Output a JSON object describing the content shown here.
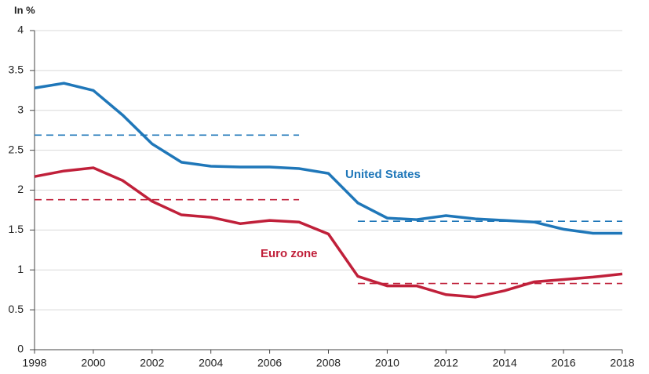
{
  "chart_data": {
    "type": "line",
    "y_label": "In %",
    "x": [
      1998,
      1999,
      2000,
      2001,
      2002,
      2003,
      2004,
      2005,
      2006,
      2007,
      2008,
      2009,
      2010,
      2011,
      2012,
      2013,
      2014,
      2015,
      2016,
      2017,
      2018
    ],
    "series": [
      {
        "name": "United States",
        "color": "#1f77b9",
        "values": [
          3.28,
          3.34,
          3.25,
          2.94,
          2.58,
          2.35,
          2.3,
          2.29,
          2.29,
          2.27,
          2.21,
          1.84,
          1.65,
          1.63,
          1.68,
          1.64,
          1.62,
          1.6,
          1.51,
          1.46,
          1.46
        ]
      },
      {
        "name": "Euro zone",
        "color": "#c0203a",
        "values": [
          2.17,
          2.24,
          2.28,
          2.12,
          1.86,
          1.69,
          1.66,
          1.58,
          1.62,
          1.6,
          1.45,
          0.92,
          0.8,
          0.8,
          0.69,
          0.66,
          0.74,
          0.85,
          0.88,
          0.91,
          0.95
        ]
      },
      {
        "color": "#1f77b9",
        "dashed": true,
        "x": [
          1998,
          2007
        ],
        "values": [
          2.69,
          2.69
        ]
      },
      {
        "color": "#1f77b9",
        "dashed": true,
        "x": [
          2009,
          2018
        ],
        "values": [
          1.61,
          1.61
        ]
      },
      {
        "color": "#c0203a",
        "dashed": true,
        "x": [
          1998,
          2007
        ],
        "values": [
          1.88,
          1.88
        ]
      },
      {
        "color": "#c0203a",
        "dashed": true,
        "x": [
          2009,
          2018
        ],
        "values": [
          0.83,
          0.83
        ]
      }
    ],
    "xlim": [
      1998,
      2018
    ],
    "xticks": [
      1998,
      2000,
      2002,
      2004,
      2006,
      2008,
      2010,
      2012,
      2014,
      2016,
      2018
    ],
    "ylim": [
      0,
      4
    ],
    "yticks": [
      0,
      0.5,
      1,
      1.5,
      2,
      2.5,
      3,
      3.5,
      4
    ],
    "grid": true
  }
}
